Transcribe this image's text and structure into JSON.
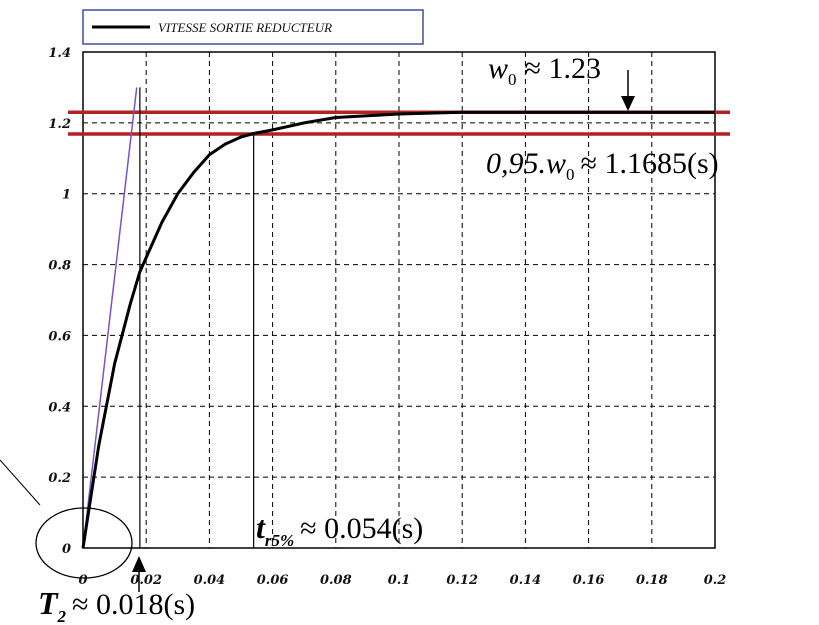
{
  "chart_data": {
    "type": "line",
    "title": "",
    "xlabel": "",
    "ylabel": "",
    "xlim": [
      0,
      0.2
    ],
    "ylim": [
      0,
      1.4
    ],
    "grid": true,
    "legend_position": "top-left",
    "x_ticks": [
      "0",
      "0.02",
      "0.04",
      "0.06",
      "0.08",
      "0.1",
      "0.12",
      "0.14",
      "0.16",
      "0.18",
      "0.2"
    ],
    "y_ticks": [
      "0",
      "0.2",
      "0.4",
      "0.6",
      "0.8",
      "1",
      "1.2",
      "1.4"
    ],
    "series": [
      {
        "name": "VITESSE SORTIE REDUCTEUR",
        "color": "#000000",
        "x": [
          0,
          0.005,
          0.01,
          0.015,
          0.018,
          0.02,
          0.025,
          0.03,
          0.035,
          0.04,
          0.045,
          0.05,
          0.054,
          0.06,
          0.07,
          0.08,
          0.09,
          0.1,
          0.12,
          0.14,
          0.16,
          0.18,
          0.2
        ],
        "y": [
          0,
          0.29,
          0.52,
          0.69,
          0.78,
          0.82,
          0.92,
          1.0,
          1.06,
          1.11,
          1.14,
          1.16,
          1.17,
          1.18,
          1.2,
          1.215,
          1.22,
          1.225,
          1.23,
          1.23,
          1.23,
          1.23,
          1.23
        ]
      }
    ],
    "lines": [
      {
        "kind": "horizontal",
        "y": 1.23,
        "color": "#b22222"
      },
      {
        "kind": "horizontal",
        "y": 1.1685,
        "color": "#b22222"
      },
      {
        "kind": "tangent",
        "x": [
          0,
          0.017
        ],
        "y": [
          0,
          1.3
        ],
        "color": "#7b52c9"
      },
      {
        "kind": "vertical",
        "x": 0.018,
        "y": [
          0,
          1.3
        ],
        "color": "#000000"
      },
      {
        "kind": "vertical",
        "x": 0.054,
        "y": [
          0,
          1.1685
        ],
        "color": "#000000"
      }
    ],
    "annotations": {
      "w0_label": "w",
      "w0_sub": "0",
      "w0_value": "≈ 1.23",
      "band_text": "0,95.w",
      "band_sub": "0",
      "band_value": "≈ 1.1685(s)",
      "tr_label": "t",
      "tr_sub": "r5%",
      "tr_value": "≈ 0.054(s)",
      "t2_label": "T",
      "t2_sub": "2",
      "t2_value": "≈ 0.018(s)"
    }
  }
}
